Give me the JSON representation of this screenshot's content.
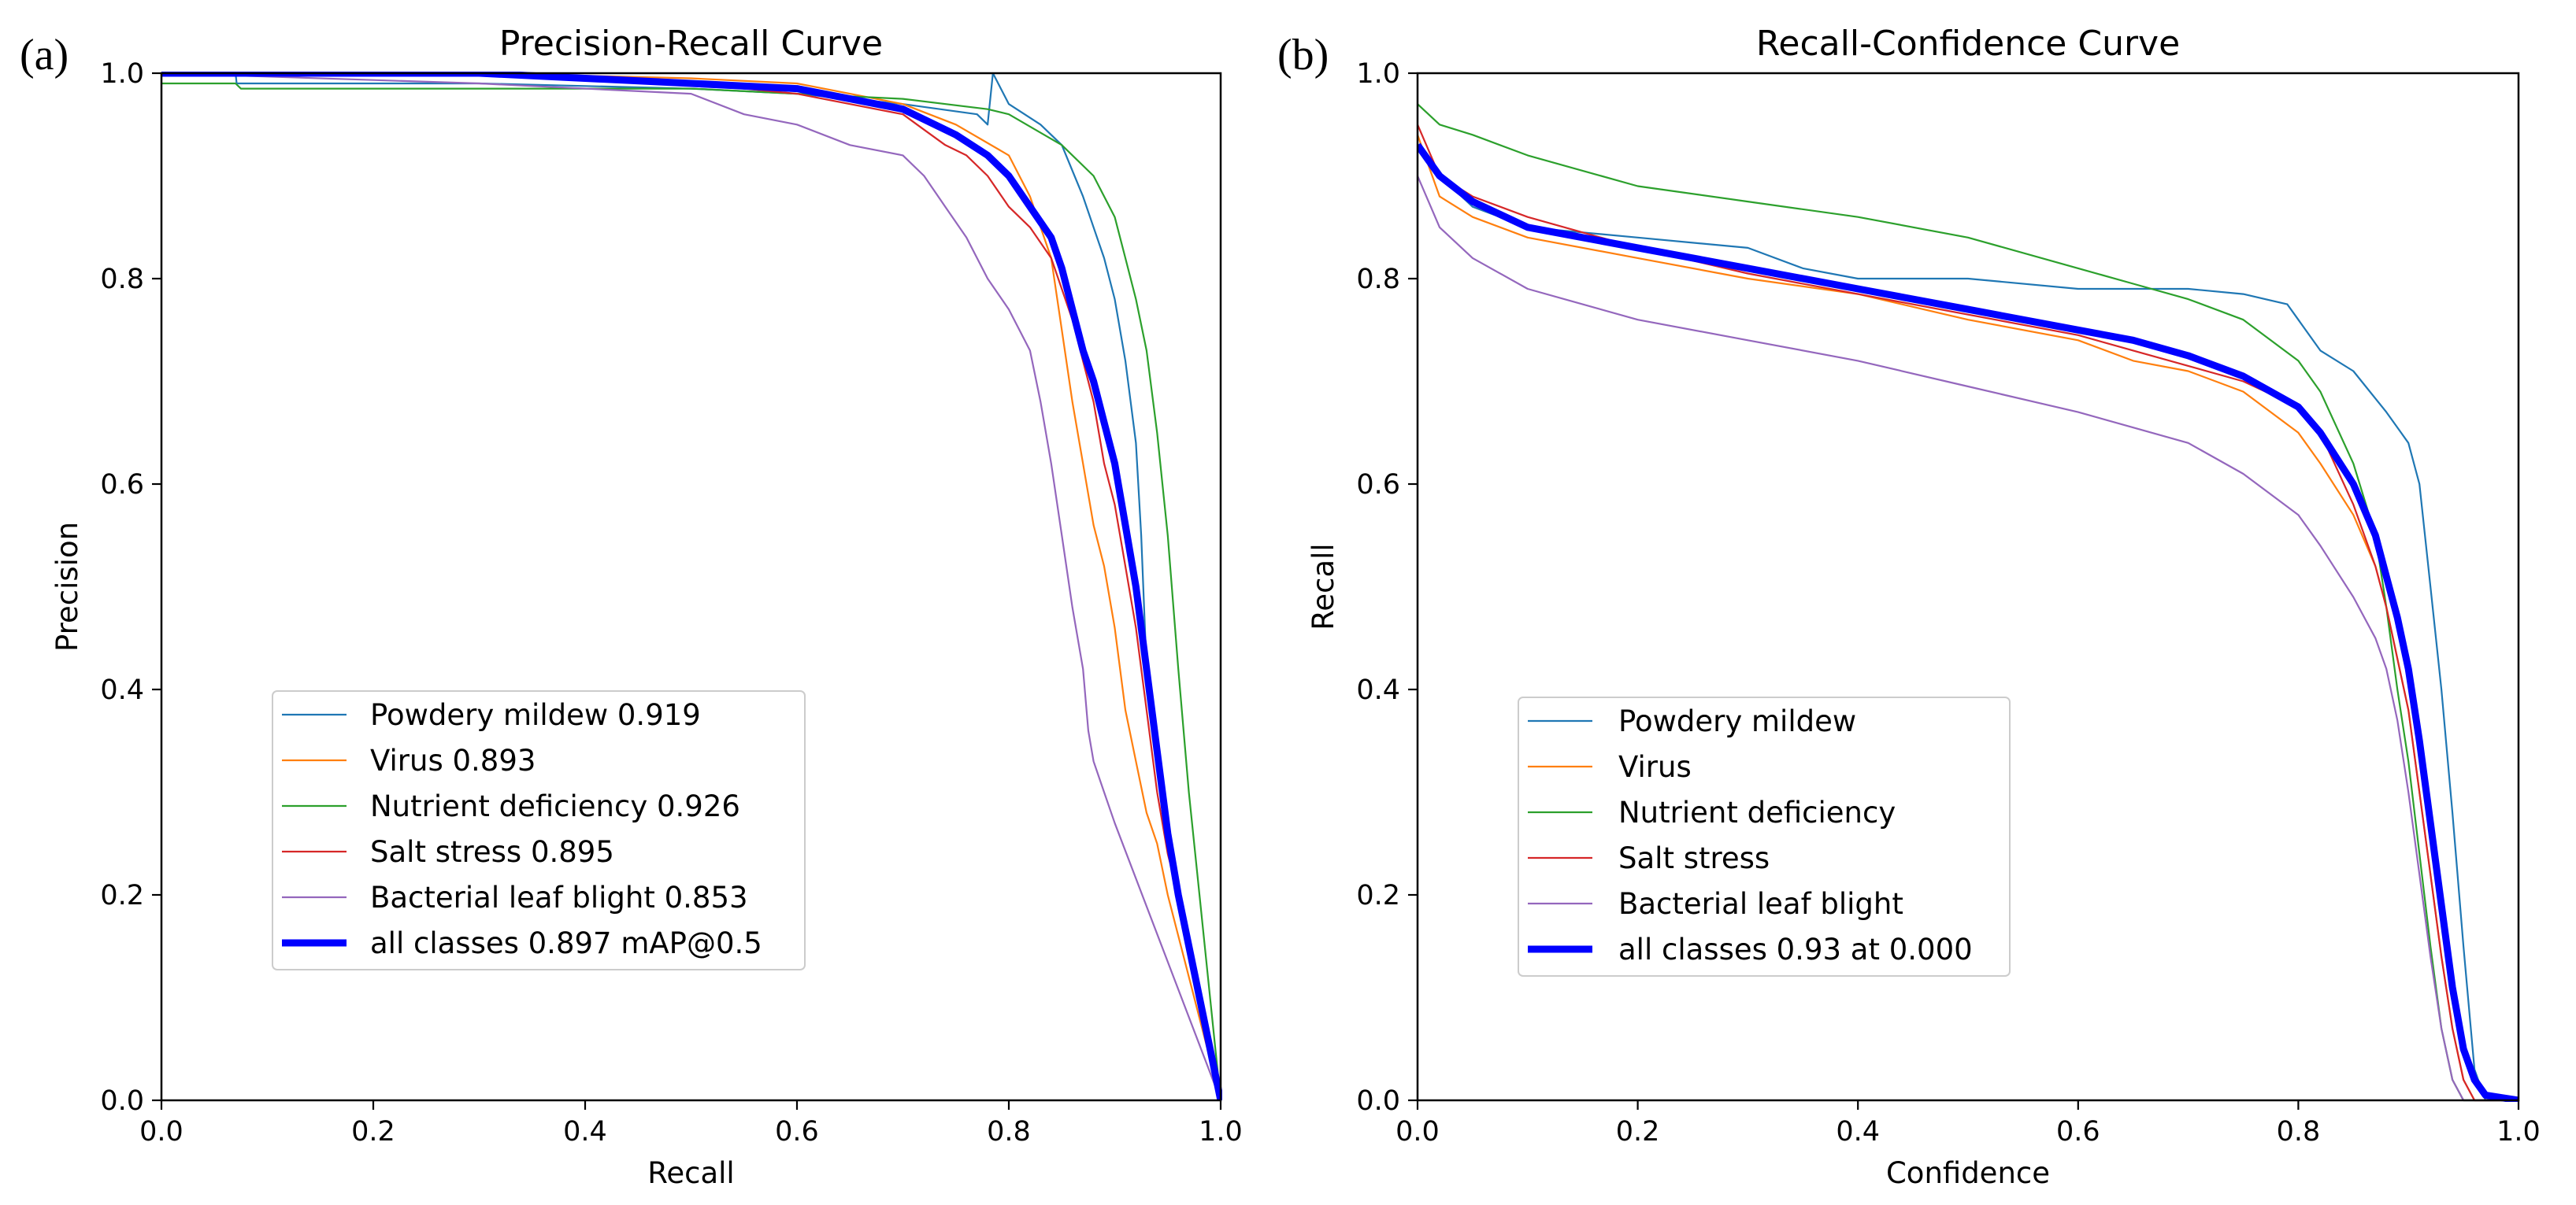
{
  "chart_data": [
    {
      "type": "line",
      "panel_label": "(a)",
      "title": "Precision-Recall Curve",
      "xlabel": "Recall",
      "ylabel": "Precision",
      "xlim": [
        0,
        1
      ],
      "ylim": [
        0,
        1
      ],
      "xticks": [
        "0.0",
        "0.2",
        "0.4",
        "0.6",
        "0.8",
        "1.0"
      ],
      "yticks": [
        "0.0",
        "0.2",
        "0.4",
        "0.6",
        "0.8",
        "1.0"
      ],
      "legend_position": "lower-left",
      "series": [
        {
          "name": "Powdery mildew 0.919",
          "color": "#1f77b4",
          "width": 2.2,
          "x": [
            0,
            0.07,
            0.071,
            0.3,
            0.5,
            0.6,
            0.7,
            0.77,
            0.78,
            0.785,
            0.8,
            0.83,
            0.85,
            0.87,
            0.88,
            0.89,
            0.9,
            0.91,
            0.92,
            0.925,
            0.93,
            0.94,
            0.95,
            0.96,
            0.97,
            1.0
          ],
          "y": [
            1.0,
            1.0,
            0.99,
            0.99,
            0.985,
            0.98,
            0.97,
            0.96,
            0.95,
            1.0,
            0.97,
            0.95,
            0.93,
            0.88,
            0.85,
            0.82,
            0.78,
            0.72,
            0.64,
            0.55,
            0.42,
            0.33,
            0.25,
            0.2,
            0.15,
            0.0
          ]
        },
        {
          "name": "Virus 0.893",
          "color": "#ff7f0e",
          "width": 2.2,
          "x": [
            0,
            0.3,
            0.5,
            0.6,
            0.65,
            0.7,
            0.75,
            0.8,
            0.82,
            0.84,
            0.85,
            0.86,
            0.87,
            0.88,
            0.89,
            0.9,
            0.91,
            0.92,
            0.93,
            0.94,
            0.95,
            1.0
          ],
          "y": [
            1.0,
            1.0,
            0.995,
            0.99,
            0.98,
            0.97,
            0.95,
            0.92,
            0.88,
            0.82,
            0.75,
            0.68,
            0.62,
            0.56,
            0.52,
            0.46,
            0.38,
            0.33,
            0.28,
            0.25,
            0.2,
            0.0
          ]
        },
        {
          "name": "Nutrient deficiency 0.926",
          "color": "#2ca02c",
          "width": 2.2,
          "x": [
            0,
            0.07,
            0.075,
            0.3,
            0.5,
            0.6,
            0.7,
            0.78,
            0.8,
            0.85,
            0.88,
            0.9,
            0.91,
            0.92,
            0.93,
            0.94,
            0.95,
            0.96,
            0.97,
            0.98,
            1.0
          ],
          "y": [
            0.99,
            0.99,
            0.985,
            0.985,
            0.985,
            0.98,
            0.975,
            0.965,
            0.96,
            0.93,
            0.9,
            0.86,
            0.82,
            0.78,
            0.73,
            0.65,
            0.55,
            0.42,
            0.3,
            0.2,
            0.0
          ]
        },
        {
          "name": "Salt stress 0.895",
          "color": "#d62728",
          "width": 2.2,
          "x": [
            0,
            0.3,
            0.5,
            0.6,
            0.65,
            0.7,
            0.72,
            0.74,
            0.76,
            0.78,
            0.8,
            0.82,
            0.84,
            0.86,
            0.88,
            0.89,
            0.9,
            0.91,
            0.92,
            0.93,
            0.94,
            0.95,
            0.96,
            1.0
          ],
          "y": [
            1.0,
            1.0,
            0.99,
            0.98,
            0.97,
            0.96,
            0.945,
            0.93,
            0.92,
            0.9,
            0.87,
            0.85,
            0.82,
            0.76,
            0.68,
            0.62,
            0.58,
            0.52,
            0.46,
            0.38,
            0.3,
            0.24,
            0.2,
            0.0
          ]
        },
        {
          "name": "Bacterial leaf blight 0.853",
          "color": "#9467bd",
          "width": 2.2,
          "x": [
            0,
            0.3,
            0.5,
            0.55,
            0.6,
            0.65,
            0.7,
            0.72,
            0.74,
            0.76,
            0.78,
            0.8,
            0.82,
            0.83,
            0.84,
            0.85,
            0.86,
            0.87,
            0.875,
            0.88,
            0.89,
            0.9,
            1.0
          ],
          "y": [
            1.0,
            0.99,
            0.98,
            0.96,
            0.95,
            0.93,
            0.92,
            0.9,
            0.87,
            0.84,
            0.8,
            0.77,
            0.73,
            0.68,
            0.62,
            0.55,
            0.48,
            0.42,
            0.36,
            0.33,
            0.3,
            0.27,
            0.0
          ]
        },
        {
          "name": "all classes 0.897 mAP@0.5",
          "color": "#0000ff",
          "width": 9,
          "x": [
            0,
            0.3,
            0.5,
            0.6,
            0.65,
            0.7,
            0.75,
            0.78,
            0.8,
            0.82,
            0.84,
            0.85,
            0.86,
            0.87,
            0.88,
            0.89,
            0.9,
            0.91,
            0.92,
            0.93,
            0.94,
            0.95,
            0.96,
            0.98,
            1.0
          ],
          "y": [
            1.0,
            1.0,
            0.99,
            0.985,
            0.975,
            0.965,
            0.94,
            0.92,
            0.9,
            0.87,
            0.84,
            0.81,
            0.77,
            0.73,
            0.7,
            0.66,
            0.62,
            0.56,
            0.5,
            0.42,
            0.34,
            0.26,
            0.2,
            0.1,
            0.0
          ]
        }
      ]
    },
    {
      "type": "line",
      "panel_label": "(b)",
      "title": "Recall-Confidence Curve",
      "xlabel": "Confidence",
      "ylabel": "Recall",
      "xlim": [
        0,
        1
      ],
      "ylim": [
        0,
        1
      ],
      "xticks": [
        "0.0",
        "0.2",
        "0.4",
        "0.6",
        "0.8",
        "1.0"
      ],
      "yticks": [
        "0.0",
        "0.2",
        "0.4",
        "0.6",
        "0.8",
        "1.0"
      ],
      "legend_position": "lower-left",
      "series": [
        {
          "name": "Powdery mildew",
          "color": "#1f77b4",
          "width": 2.2,
          "x": [
            0,
            0.02,
            0.05,
            0.1,
            0.2,
            0.3,
            0.35,
            0.4,
            0.5,
            0.6,
            0.7,
            0.75,
            0.79,
            0.8,
            0.82,
            0.85,
            0.88,
            0.9,
            0.91,
            0.92,
            0.93,
            0.94,
            0.95,
            0.96,
            0.97,
            1.0
          ],
          "y": [
            0.93,
            0.9,
            0.87,
            0.85,
            0.84,
            0.83,
            0.81,
            0.8,
            0.8,
            0.79,
            0.79,
            0.785,
            0.775,
            0.76,
            0.73,
            0.71,
            0.67,
            0.64,
            0.6,
            0.5,
            0.4,
            0.28,
            0.15,
            0.03,
            0.0,
            0.0
          ]
        },
        {
          "name": "Virus",
          "color": "#ff7f0e",
          "width": 2.2,
          "x": [
            0,
            0.02,
            0.05,
            0.1,
            0.2,
            0.3,
            0.4,
            0.5,
            0.6,
            0.65,
            0.7,
            0.75,
            0.8,
            0.82,
            0.85,
            0.87,
            0.88,
            0.89,
            0.9,
            0.91,
            0.92,
            0.93,
            0.94,
            0.95,
            0.96,
            1.0
          ],
          "y": [
            0.94,
            0.88,
            0.86,
            0.84,
            0.82,
            0.8,
            0.785,
            0.76,
            0.74,
            0.72,
            0.71,
            0.69,
            0.65,
            0.62,
            0.57,
            0.52,
            0.48,
            0.43,
            0.38,
            0.3,
            0.22,
            0.14,
            0.07,
            0.02,
            0.0,
            0.0
          ]
        },
        {
          "name": "Nutrient deficiency",
          "color": "#2ca02c",
          "width": 2.2,
          "x": [
            0,
            0.02,
            0.05,
            0.1,
            0.2,
            0.3,
            0.4,
            0.5,
            0.6,
            0.65,
            0.7,
            0.75,
            0.8,
            0.82,
            0.85,
            0.87,
            0.88,
            0.89,
            0.9,
            0.91,
            0.92,
            0.93,
            0.94,
            0.95,
            1.0
          ],
          "y": [
            0.97,
            0.95,
            0.94,
            0.92,
            0.89,
            0.875,
            0.86,
            0.84,
            0.81,
            0.795,
            0.78,
            0.76,
            0.72,
            0.69,
            0.62,
            0.55,
            0.48,
            0.4,
            0.33,
            0.24,
            0.15,
            0.07,
            0.02,
            0.0,
            0.0
          ]
        },
        {
          "name": "Salt stress",
          "color": "#d62728",
          "width": 2.2,
          "x": [
            0,
            0.02,
            0.05,
            0.1,
            0.2,
            0.3,
            0.4,
            0.5,
            0.6,
            0.65,
            0.7,
            0.75,
            0.8,
            0.82,
            0.85,
            0.87,
            0.88,
            0.89,
            0.9,
            0.91,
            0.92,
            0.93,
            0.94,
            0.95,
            0.96,
            1.0
          ],
          "y": [
            0.95,
            0.9,
            0.88,
            0.86,
            0.83,
            0.805,
            0.785,
            0.765,
            0.745,
            0.73,
            0.715,
            0.7,
            0.675,
            0.65,
            0.58,
            0.52,
            0.48,
            0.43,
            0.38,
            0.3,
            0.22,
            0.14,
            0.07,
            0.02,
            0.0,
            0.0
          ]
        },
        {
          "name": "Bacterial leaf blight",
          "color": "#9467bd",
          "width": 2.2,
          "x": [
            0,
            0.02,
            0.05,
            0.1,
            0.2,
            0.3,
            0.4,
            0.5,
            0.6,
            0.65,
            0.7,
            0.75,
            0.8,
            0.82,
            0.85,
            0.87,
            0.88,
            0.89,
            0.9,
            0.91,
            0.92,
            0.93,
            0.94,
            0.95,
            1.0
          ],
          "y": [
            0.9,
            0.85,
            0.82,
            0.79,
            0.76,
            0.74,
            0.72,
            0.695,
            0.67,
            0.655,
            0.64,
            0.61,
            0.57,
            0.54,
            0.49,
            0.45,
            0.42,
            0.37,
            0.3,
            0.22,
            0.14,
            0.07,
            0.02,
            0.0,
            0.0
          ]
        },
        {
          "name": "all classes 0.93 at 0.000",
          "color": "#0000ff",
          "width": 9,
          "x": [
            0,
            0.02,
            0.05,
            0.1,
            0.2,
            0.3,
            0.4,
            0.5,
            0.6,
            0.65,
            0.7,
            0.75,
            0.8,
            0.82,
            0.85,
            0.87,
            0.88,
            0.89,
            0.9,
            0.91,
            0.92,
            0.93,
            0.94,
            0.95,
            0.96,
            0.97,
            1.0
          ],
          "y": [
            0.93,
            0.9,
            0.875,
            0.85,
            0.83,
            0.81,
            0.79,
            0.77,
            0.75,
            0.74,
            0.725,
            0.705,
            0.675,
            0.65,
            0.6,
            0.55,
            0.51,
            0.47,
            0.42,
            0.35,
            0.27,
            0.19,
            0.11,
            0.05,
            0.02,
            0.005,
            0.0
          ]
        }
      ]
    }
  ]
}
